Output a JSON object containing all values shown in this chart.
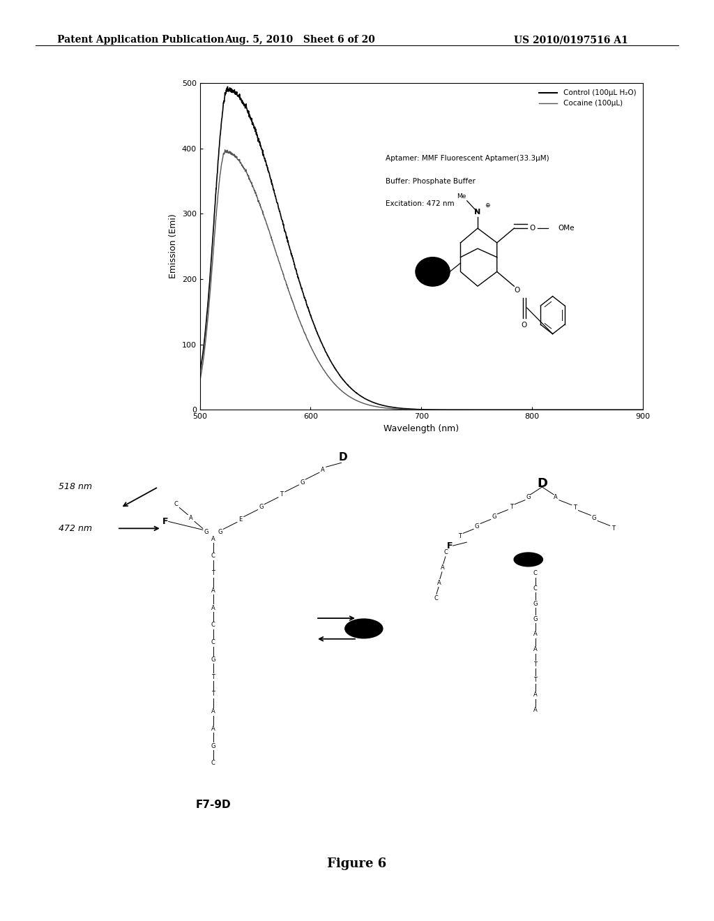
{
  "header_left": "Patent Application Publication",
  "header_mid": "Aug. 5, 2010   Sheet 6 of 20",
  "header_right": "US 2010/0197516 A1",
  "figure_caption": "Figure 6",
  "figure_label": "F7-9D",
  "xlabel": "Wavelength (nm)",
  "ylabel": "Emission (Emi)",
  "xlim": [
    500,
    900
  ],
  "ylim": [
    0,
    500
  ],
  "xticks": [
    500,
    600,
    700,
    800,
    900
  ],
  "yticks": [
    0,
    100,
    200,
    300,
    400,
    500
  ],
  "legend_line1": "Control (100μL H₂O)",
  "legend_line2": "Cocaine (100μL)",
  "annotation_line1": "Aptamer: MMF Fluorescent Aptamer(33.3μM)",
  "annotation_line2": "Buffer: Phosphate Buffer",
  "annotation_line3": "Excitation: 472 nm",
  "bg_color": "#ffffff",
  "line_color_control": "#000000",
  "line_color_cocaine": "#555555"
}
